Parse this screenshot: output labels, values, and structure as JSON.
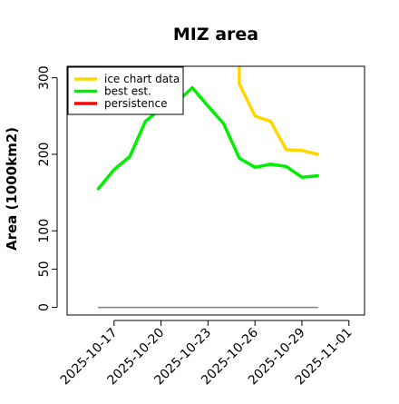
{
  "chart_data": {
    "type": "line",
    "title": "MIZ area",
    "xlabel": "",
    "ylabel": "Area (1000km2)",
    "x_ticks": [
      "2025-10-17",
      "2025-10-20",
      "2025-10-23",
      "2025-10-26",
      "2025-10-29",
      "2025-11-01"
    ],
    "y_ticks": [
      0,
      50,
      100,
      200,
      300
    ],
    "xlim": [
      "2025-10-14",
      "2025-11-02"
    ],
    "ylim": [
      -10,
      315
    ],
    "grid": false,
    "legend_position": "top-left",
    "series": [
      {
        "name": "ice chart data",
        "color": "#FFD700",
        "x": [
          "2025-10-25",
          "2025-10-25",
          "2025-10-26",
          "2025-10-27",
          "2025-10-28",
          "2025-10-29",
          "2025-10-30"
        ],
        "values": [
          315,
          292,
          250,
          243,
          206,
          205,
          200
        ]
      },
      {
        "name": "best est.",
        "color": "#00EE00",
        "x": [
          "2025-10-16",
          "2025-10-17",
          "2025-10-18",
          "2025-10-19",
          "2025-10-20",
          "2025-10-21",
          "2025-10-22",
          "2025-10-23",
          "2025-10-24",
          "2025-10-25",
          "2025-10-26",
          "2025-10-27",
          "2025-10-28",
          "2025-10-29",
          "2025-10-30"
        ],
        "values": [
          155,
          180,
          197,
          243,
          260,
          268,
          287,
          263,
          240,
          195,
          183,
          187,
          184,
          170,
          172
        ]
      },
      {
        "name": "persistence",
        "color": "#FF0000",
        "x": [],
        "values": []
      },
      {
        "name": "",
        "color": "#808080",
        "x": [
          "2025-10-16",
          "2025-10-30"
        ],
        "values": [
          0,
          0
        ]
      }
    ]
  }
}
